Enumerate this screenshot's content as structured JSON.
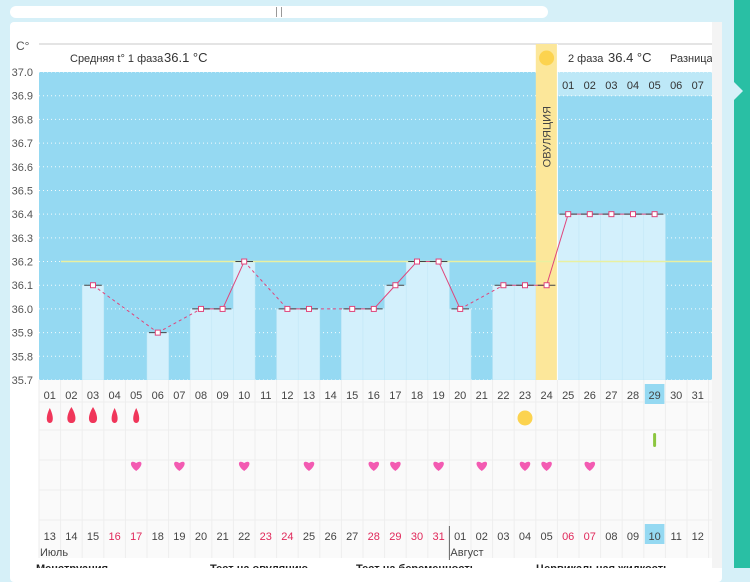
{
  "header": {
    "unit": "C°",
    "phase1_label": "Средняя t° 1 фаза",
    "phase1_value": "36.1 °C",
    "phase2_label": "2 фаза",
    "phase2_value": "36.4 °C",
    "diff_label": "Разница",
    "ovulation_label": "ОВУЛЯЦИЯ"
  },
  "colors": {
    "plot_bg": "#95d9f2",
    "bar": "#d3f0fc",
    "line": "#e0457b",
    "ovulation_band": "#fce79a",
    "sun": "#fcd34f",
    "drop": "#f0365a",
    "heart": "#f35bb2",
    "marker": "#8cc63f",
    "coverline": "#e9f0a0",
    "highlight_cell": "#95d9f2"
  },
  "chart_data": {
    "type": "bar",
    "ylabel": "C°",
    "ylim": [
      35.7,
      37.0
    ],
    "yticks": [
      "37.0",
      "36.9",
      "36.8",
      "36.7",
      "36.6",
      "36.5",
      "36.4",
      "36.3",
      "36.2",
      "36.1",
      "36.0",
      "35.9",
      "35.8",
      "35.7"
    ],
    "cycle_days": [
      "01",
      "02",
      "03",
      "04",
      "05",
      "06",
      "07",
      "08",
      "09",
      "10",
      "11",
      "12",
      "13",
      "14",
      "15",
      "16",
      "17",
      "18",
      "19",
      "20",
      "21",
      "22",
      "23",
      "24",
      "25",
      "26",
      "27",
      "28",
      "29",
      "30",
      "31"
    ],
    "calendar_dates": [
      "13",
      "14",
      "15",
      "16",
      "17",
      "18",
      "19",
      "20",
      "21",
      "22",
      "23",
      "24",
      "25",
      "26",
      "27",
      "28",
      "29",
      "30",
      "31",
      "01",
      "02",
      "03",
      "04",
      "05",
      "06",
      "07",
      "08",
      "09",
      "10",
      "11",
      "12"
    ],
    "weekend_dates": [
      3,
      4,
      10,
      11,
      17,
      18,
      24,
      25
    ],
    "months": [
      {
        "label": "Июль",
        "start": 0
      },
      {
        "label": "Август",
        "start": 19
      }
    ],
    "temps": [
      null,
      null,
      36.1,
      null,
      null,
      35.9,
      null,
      36.0,
      36.0,
      36.2,
      null,
      36.0,
      36.0,
      null,
      36.0,
      36.0,
      36.1,
      36.2,
      36.2,
      36.0,
      null,
      36.1,
      36.1,
      36.1,
      36.4,
      36.4,
      36.4,
      36.4,
      36.4,
      null,
      null
    ],
    "coverline": 36.2,
    "phase1_mean": 36.1,
    "phase2_mean": 36.4,
    "ovulation_day": 24,
    "current_day": 29,
    "phase2_top_labels": [
      "01",
      "02",
      "03",
      "04",
      "05",
      "06",
      "07"
    ],
    "bleeding": [
      {
        "day": 1,
        "size": 1
      },
      {
        "day": 2,
        "size": 2
      },
      {
        "day": 3,
        "size": 2
      },
      {
        "day": 4,
        "size": 1
      },
      {
        "day": 5,
        "size": 1
      }
    ],
    "intercourse_days": [
      5,
      7,
      10,
      13,
      16,
      17,
      19,
      21,
      23,
      24,
      26
    ],
    "ovulation_test_day": 23,
    "cervical_marker_day": 29
  },
  "legend": {
    "items": [
      "Менструация",
      "Тест на овуляцию",
      "Тест на беременность",
      "Цервикальная жидкость"
    ]
  }
}
